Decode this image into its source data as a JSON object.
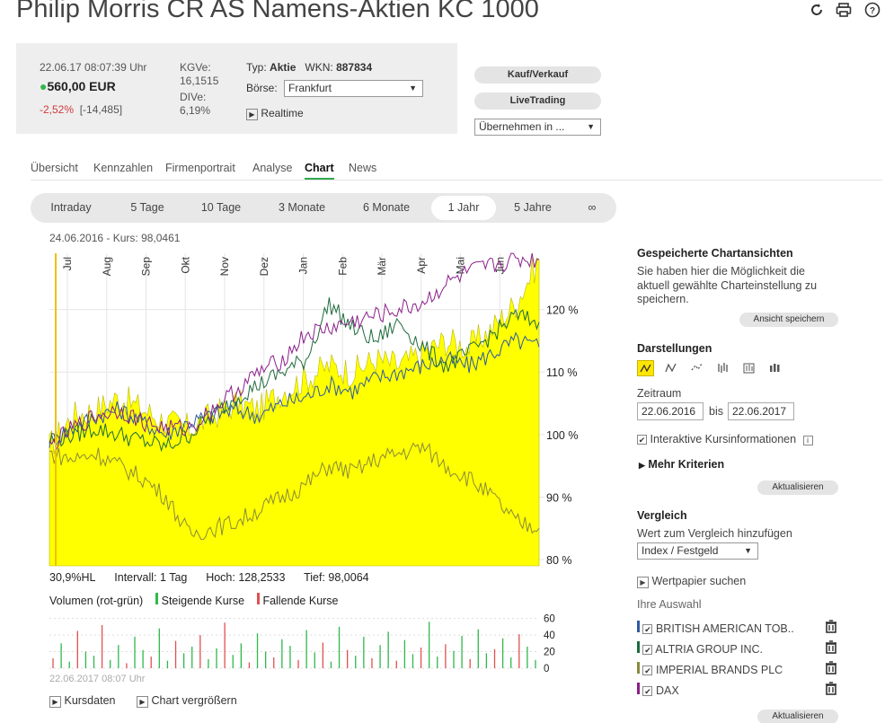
{
  "header": {
    "title": "Philip Morris CR AS Namens-Aktien KC 1000"
  },
  "icons": {
    "refresh": "refresh-icon",
    "print": "print-icon",
    "help": "help-icon"
  },
  "quote": {
    "timestamp": "22.06.17  08:07:39 Uhr",
    "price": "560,00 EUR",
    "change_pct": "-2,52%",
    "change_abs": "[-14,485]",
    "kgv_label": "KGVe:",
    "kgv_value": "16,1515",
    "div_label": "DIVe:",
    "div_value": "6,19%",
    "typ_label": "Typ:",
    "typ_value": "Aktie",
    "wkn_label": "WKN:",
    "wkn_value": "887834",
    "boerse_label": "Börse:",
    "boerse_value": "Frankfurt",
    "realtime": "Realtime"
  },
  "actions": {
    "kauf": "Kauf/Verkauf",
    "live": "LiveTrading",
    "uebernehmen": "Übernehmen in ..."
  },
  "tabs": [
    "Übersicht",
    "Kennzahlen",
    "Firmenportrait",
    "Analyse",
    "Chart",
    "News"
  ],
  "ranges": [
    "Intraday",
    "5 Tage",
    "10 Tage",
    "3 Monate",
    "6 Monate",
    "1 Jahr",
    "5 Jahre",
    "∞"
  ],
  "chart_header": "24.06.2016  -  Kurs: 98,0461",
  "chart_data": {
    "type": "area",
    "x_ticks": [
      "Jul",
      "Aug",
      "Sep",
      "Okt",
      "Nov",
      "Dez",
      "Jan",
      "Feb",
      "Mär",
      "Apr",
      "Mai",
      "Jun"
    ],
    "y_ticks": [
      "120 %",
      "110 %",
      "100 %",
      "90 %",
      "80 %"
    ],
    "ylim": [
      79,
      129
    ],
    "series": [
      {
        "name": "Philip Morris CR AS",
        "color": "#ffff00",
        "values": [
          98,
          103,
          104,
          106,
          104,
          102,
          101,
          103,
          105,
          104,
          107,
          109,
          111,
          110,
          112,
          111,
          113,
          115,
          114,
          117,
          121,
          128
        ]
      },
      {
        "name": "BRITISH AMERICAN TOB..",
        "color": "#2f5aa0",
        "values": [
          99,
          101,
          103,
          104,
          102,
          100,
          102,
          103,
          104,
          103,
          105,
          106,
          108,
          107,
          109,
          110,
          111,
          112,
          111,
          113,
          115,
          114
        ]
      },
      {
        "name": "ALTRIA GROUP INC.",
        "color": "#1e6b3c",
        "values": [
          99,
          100,
          101,
          100,
          99,
          98,
          100,
          103,
          106,
          108,
          110,
          112,
          121,
          117,
          115,
          118,
          114,
          111,
          113,
          116,
          119,
          118
        ]
      },
      {
        "name": "IMPERIAL BRANDS PLC",
        "color": "#8a8a3a",
        "values": [
          97,
          96,
          97,
          95,
          93,
          90,
          84,
          85,
          86,
          88,
          90,
          92,
          95,
          94,
          96,
          97,
          98,
          95,
          93,
          90,
          86,
          85
        ]
      },
      {
        "name": "DAX",
        "color": "#8b1f8b",
        "values": [
          98,
          101,
          103,
          104,
          102,
          101,
          101,
          104,
          107,
          110,
          112,
          116,
          117,
          118,
          119,
          120,
          121,
          124,
          126,
          127,
          128,
          128
        ]
      }
    ]
  },
  "stats": {
    "hl": "30,9%HL",
    "intervall": "Intervall: 1 Tag",
    "hoch": "Hoch: 128,2533",
    "tief": "Tief: 98,0064"
  },
  "volume": {
    "title": "Volumen (rot-grün)",
    "rising": "Steigende Kurse",
    "falling": "Fallende Kurse",
    "ticks": [
      "60",
      "40",
      "20",
      "0"
    ],
    "timestamp": "22.06.2017 08:07 Uhr",
    "bars": [
      12,
      30,
      8,
      45,
      20,
      15,
      52,
      10,
      28,
      6,
      38,
      22,
      14,
      48,
      9,
      33,
      18,
      26,
      40,
      11,
      24,
      55,
      16,
      30,
      7,
      42,
      20,
      13,
      35,
      27,
      10,
      46,
      19,
      31,
      8,
      50,
      22,
      15,
      38,
      12,
      28,
      44,
      9,
      34,
      17,
      25,
      56,
      14,
      29,
      21,
      39,
      11,
      47,
      18,
      23,
      36,
      13,
      41,
      26,
      10
    ]
  },
  "bottom_links": {
    "kursdaten": "Kursdaten",
    "vergroessern": "Chart vergrößern"
  },
  "sidebar": {
    "saved_title": "Gespeicherte Chartansichten",
    "saved_text": "Sie haben hier die Möglichkeit die aktuell gewählte Charteinstellung zu speichern.",
    "save_btn": "Ansicht speichern",
    "darst_title": "Darstellungen",
    "zeitraum": "Zeitraum",
    "from": "22.06.2016",
    "bis": "bis",
    "to": "22.06.2017",
    "interaktiv": "Interaktive Kursinformationen",
    "mehr": "Mehr Kriterien",
    "aktualisieren": "Aktualisieren",
    "vergleich_title": "Vergleich",
    "vergleich_text": "Wert zum Vergleich hinzufügen",
    "vergleich_select": "Index / Festgeld",
    "wp_suchen": "Wertpapier suchen",
    "auswahl": "Ihre Auswahl",
    "items": [
      {
        "label": "BRITISH AMERICAN TOB..",
        "color": "#2f5aa0"
      },
      {
        "label": "ALTRIA GROUP INC.",
        "color": "#1e6b3c"
      },
      {
        "label": "IMPERIAL BRANDS PLC",
        "color": "#8a8a3a"
      },
      {
        "label": "DAX",
        "color": "#8b1f8b"
      }
    ],
    "aktualisieren2": "Aktualisieren"
  }
}
